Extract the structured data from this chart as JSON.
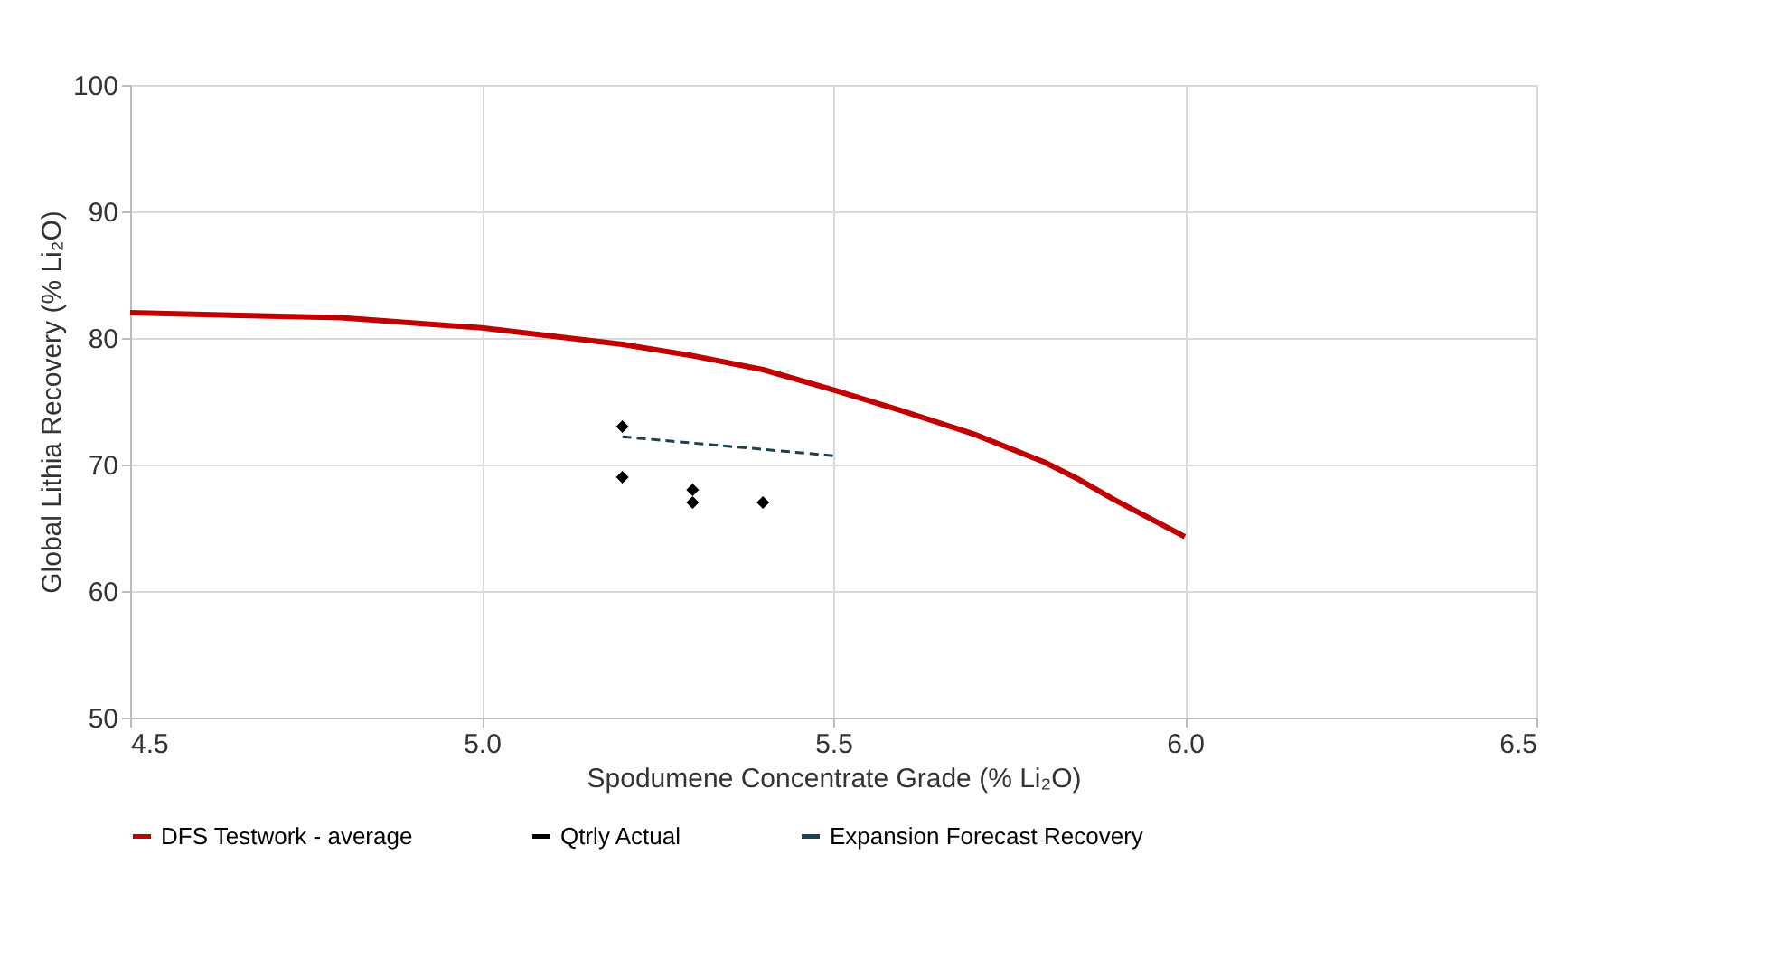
{
  "chart_data": {
    "type": "line",
    "xlabel": "Spodumene Concentrate Grade (% Li₂O)",
    "ylabel": "Global Lithia Recovery (% Li₂O)",
    "xlim": [
      4.5,
      6.5
    ],
    "xticks": [
      {
        "value": 4.5,
        "label": "4.5"
      },
      {
        "value": 5,
        "label": "5.0"
      },
      {
        "value": 5.5,
        "label": "5.5"
      },
      {
        "value": 6,
        "label": "6.0"
      },
      {
        "value": 6.5,
        "label": "6.5"
      }
    ],
    "ylim": [
      50,
      100
    ],
    "yticks": [
      50,
      60,
      70,
      80,
      90,
      100
    ],
    "grid": true,
    "legend": "bottom",
    "series": [
      {
        "name": "DFS Testwork - average",
        "color": "#c00000",
        "line_style": "solid",
        "marker": "none",
        "x": [
          4.5,
          4.8,
          5.0,
          5.2,
          5.3,
          5.4,
          5.5,
          5.6,
          5.7,
          5.8,
          5.85,
          5.9,
          6.0
        ],
        "values": [
          82,
          81.6,
          80.8,
          79.5,
          78.6,
          77.5,
          75.9,
          74.2,
          72.4,
          70.2,
          68.8,
          67.2,
          64.3
        ]
      },
      {
        "name": "Qtrly Actual",
        "type": "scatter",
        "color": "#000000",
        "marker": "diamond",
        "x": [
          5.2,
          5.2,
          5.3,
          5.3,
          5.4
        ],
        "values": [
          73,
          69,
          68,
          67,
          67
        ]
      },
      {
        "name": "Expansion Forecast Recovery",
        "color": "#1f3f4f",
        "line_style": "dashed",
        "marker": "none",
        "x": [
          5.2,
          5.5
        ],
        "values": [
          72.2,
          70.7
        ]
      }
    ]
  }
}
